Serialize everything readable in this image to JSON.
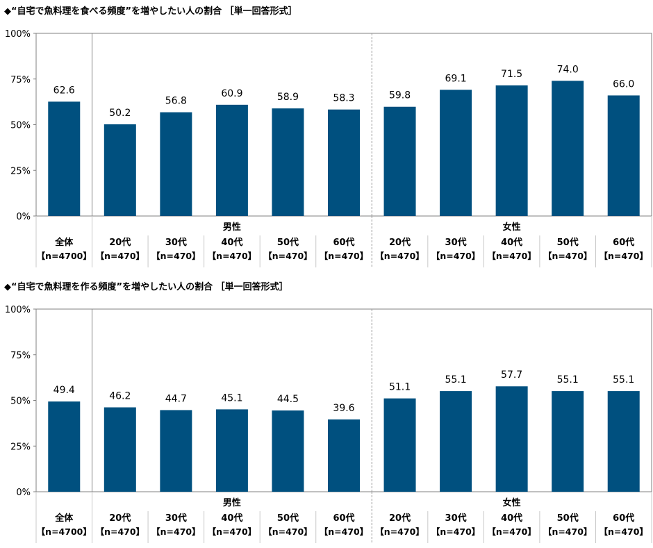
{
  "chart_data": [
    {
      "type": "bar",
      "title": "◆“自宅で魚料理を食べる頻度”を増やしたい人の割合 ［単一回答形式］",
      "yticks": [
        "0%",
        "25%",
        "50%",
        "75%",
        "100%"
      ],
      "ylim": [
        0,
        100
      ],
      "groups": [
        "男性",
        "女性"
      ],
      "categories": [
        "全体",
        "20代",
        "30代",
        "40代",
        "50代",
        "60代",
        "20代",
        "30代",
        "40代",
        "50代",
        "60代"
      ],
      "n_labels": [
        "【n=4700】",
        "【n=470】",
        "【n=470】",
        "【n=470】",
        "【n=470】",
        "【n=470】",
        "【n=470】",
        "【n=470】",
        "【n=470】",
        "【n=470】",
        "【n=470】"
      ],
      "values": [
        62.6,
        50.2,
        56.8,
        60.9,
        58.9,
        58.3,
        59.8,
        69.1,
        71.5,
        74.0,
        66.0
      ],
      "value_labels": [
        "62.6",
        "50.2",
        "56.8",
        "60.9",
        "58.9",
        "58.3",
        "59.8",
        "69.1",
        "71.5",
        "74.0",
        "66.0"
      ],
      "bar_color": "#00507f",
      "grid": false
    },
    {
      "type": "bar",
      "title": "◆“自宅で魚料理を作る頻度”を増やしたい人の割合 ［単一回答形式］",
      "yticks": [
        "0%",
        "25%",
        "50%",
        "75%",
        "100%"
      ],
      "ylim": [
        0,
        100
      ],
      "groups": [
        "男性",
        "女性"
      ],
      "categories": [
        "全体",
        "20代",
        "30代",
        "40代",
        "50代",
        "60代",
        "20代",
        "30代",
        "40代",
        "50代",
        "60代"
      ],
      "n_labels": [
        "【n=4700】",
        "【n=470】",
        "【n=470】",
        "【n=470】",
        "【n=470】",
        "【n=470】",
        "【n=470】",
        "【n=470】",
        "【n=470】",
        "【n=470】",
        "【n=470】"
      ],
      "values": [
        49.4,
        46.2,
        44.7,
        45.1,
        44.5,
        39.6,
        51.1,
        55.1,
        57.7,
        55.1,
        55.1
      ],
      "value_labels": [
        "49.4",
        "46.2",
        "44.7",
        "45.1",
        "44.5",
        "39.6",
        "51.1",
        "55.1",
        "57.7",
        "55.1",
        "55.1"
      ],
      "bar_color": "#00507f",
      "grid": false
    }
  ]
}
